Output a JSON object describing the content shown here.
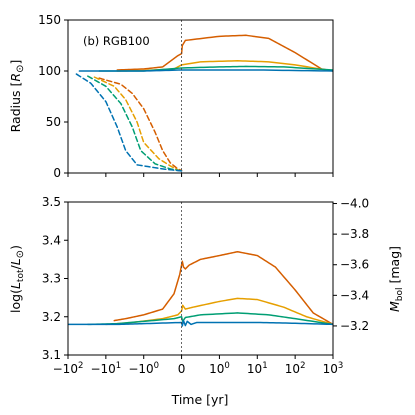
{
  "colors": {
    "orange": "#d55e00",
    "gold": "#e69f00",
    "green": "#009e73",
    "blue": "#0072b2",
    "frame": "#000000",
    "event_line": "#444444"
  },
  "chart_data": [
    {
      "type": "line",
      "panel": "top",
      "annotation": "(b) RGB100",
      "ylabel": "Radius [R⊙]",
      "xlabel": "",
      "x_scale": "symlog",
      "xlim": [
        -100,
        1000
      ],
      "ylim": [
        0,
        150
      ],
      "yticks": [
        0,
        50,
        100,
        150
      ],
      "ytick_labels": [
        "0",
        "50",
        "100",
        "150"
      ],
      "grid": false,
      "event_line_x": 0,
      "series": [
        {
          "color_key": "orange",
          "style": "solid",
          "points": [
            [
              -5,
              101
            ],
            [
              -1,
              102
            ],
            [
              -0.5,
              104
            ],
            [
              -0.1,
              115
            ],
            [
              0,
              117
            ],
            [
              0.02,
              125
            ],
            [
              0.1,
              130
            ],
            [
              1,
              134
            ],
            [
              5,
              135
            ],
            [
              20,
              132
            ],
            [
              100,
              118
            ],
            [
              500,
              102
            ],
            [
              1000,
              100
            ]
          ]
        },
        {
          "color_key": "gold",
          "style": "solid",
          "points": [
            [
              -5,
              100
            ],
            [
              -1,
              100.5
            ],
            [
              -0.2,
              102
            ],
            [
              0,
              106
            ],
            [
              0.5,
              109
            ],
            [
              3,
              110
            ],
            [
              20,
              109
            ],
            [
              100,
              106
            ],
            [
              1000,
              100
            ]
          ]
        },
        {
          "color_key": "green",
          "style": "solid",
          "points": [
            [
              -15,
              100
            ],
            [
              -1,
              100
            ],
            [
              0,
              103
            ],
            [
              1,
              104
            ],
            [
              5,
              104.5
            ],
            [
              50,
              104
            ],
            [
              1000,
              101
            ]
          ]
        },
        {
          "color_key": "blue",
          "style": "solid",
          "points": [
            [
              -50,
              100
            ],
            [
              -1,
              100
            ],
            [
              0,
              101
            ],
            [
              10,
              101
            ],
            [
              1000,
              100
            ]
          ]
        },
        {
          "color_key": "orange",
          "style": "dashed",
          "points": [
            [
              -15,
              93
            ],
            [
              -4,
              87
            ],
            [
              -2,
              78
            ],
            [
              -1,
              63
            ],
            [
              -0.7,
              40
            ],
            [
              -0.5,
              22
            ],
            [
              -0.3,
              10
            ],
            [
              -0.1,
              4
            ],
            [
              0,
              2.5
            ]
          ]
        },
        {
          "color_key": "gold",
          "style": "dashed",
          "points": [
            [
              -20,
              94
            ],
            [
              -6,
              85
            ],
            [
              -3,
              72
            ],
            [
              -1.5,
              50
            ],
            [
              -1,
              30
            ],
            [
              -0.6,
              14
            ],
            [
              -0.3,
              7
            ],
            [
              -0.1,
              3
            ],
            [
              0,
              2
            ]
          ]
        },
        {
          "color_key": "green",
          "style": "dashed",
          "points": [
            [
              -30,
              95
            ],
            [
              -10,
              85
            ],
            [
              -4,
              68
            ],
            [
              -2,
              45
            ],
            [
              -1.2,
              22
            ],
            [
              -0.7,
              9
            ],
            [
              -0.3,
              4
            ],
            [
              0,
              2
            ]
          ]
        },
        {
          "color_key": "blue",
          "style": "dashed",
          "points": [
            [
              -60,
              97
            ],
            [
              -25,
              88
            ],
            [
              -10,
              70
            ],
            [
              -5,
              45
            ],
            [
              -3,
              22
            ],
            [
              -1.5,
              8
            ],
            [
              -0.5,
              4
            ],
            [
              0,
              2
            ]
          ]
        }
      ]
    },
    {
      "type": "line",
      "panel": "bottom",
      "ylabel": "log(Ltot/L⊙)",
      "ylabel_right": "Mbol [mag]",
      "xlabel": "Time [yr]",
      "x_scale": "symlog",
      "xlim": [
        -100,
        1000
      ],
      "ylim": [
        3.1,
        3.5
      ],
      "yticks": [
        3.1,
        3.2,
        3.3,
        3.4,
        3.5
      ],
      "ytick_labels": [
        "3.1",
        "3.2",
        "3.3",
        "3.4",
        "3.5"
      ],
      "right_ticks": [
        -3.2,
        -3.4,
        -3.6,
        -3.8,
        -4.0
      ],
      "right_tick_labels": [
        "−3.2",
        "−3.4",
        "−3.6",
        "−3.8",
        "−4.0"
      ],
      "mbol_ref": 4.74,
      "xticks": [
        -100,
        -10,
        -1,
        0,
        1,
        10,
        100,
        1000
      ],
      "xtick_labels": [
        {
          "base": "−10",
          "exp": "2"
        },
        {
          "base": "−10",
          "exp": "1"
        },
        {
          "base": "−10",
          "exp": "0"
        },
        {
          "base": "0",
          "exp": ""
        },
        {
          "base": "10",
          "exp": "0"
        },
        {
          "base": "10",
          "exp": "1"
        },
        {
          "base": "10",
          "exp": "2"
        },
        {
          "base": "10",
          "exp": "3"
        }
      ],
      "grid": false,
      "event_line_x": 0,
      "series": [
        {
          "color_key": "orange",
          "style": "solid",
          "points": [
            [
              -6,
              3.19
            ],
            [
              -3,
              3.195
            ],
            [
              -1,
              3.205
            ],
            [
              -0.5,
              3.22
            ],
            [
              -0.2,
              3.26
            ],
            [
              -0.05,
              3.31
            ],
            [
              0,
              3.335
            ],
            [
              0.02,
              3.345
            ],
            [
              0.05,
              3.33
            ],
            [
              0.1,
              3.325
            ],
            [
              0.2,
              3.335
            ],
            [
              0.5,
              3.35
            ],
            [
              1,
              3.36
            ],
            [
              3,
              3.37
            ],
            [
              10,
              3.36
            ],
            [
              30,
              3.33
            ],
            [
              100,
              3.27
            ],
            [
              300,
              3.21
            ],
            [
              1000,
              3.18
            ]
          ]
        },
        {
          "color_key": "gold",
          "style": "solid",
          "points": [
            [
              -10,
              3.18
            ],
            [
              -2,
              3.185
            ],
            [
              -0.5,
              3.195
            ],
            [
              -0.1,
              3.205
            ],
            [
              0,
              3.215
            ],
            [
              0.03,
              3.23
            ],
            [
              0.1,
              3.22
            ],
            [
              0.3,
              3.225
            ],
            [
              1,
              3.24
            ],
            [
              3,
              3.248
            ],
            [
              10,
              3.245
            ],
            [
              50,
              3.225
            ],
            [
              200,
              3.2
            ],
            [
              1000,
              3.18
            ]
          ]
        },
        {
          "color_key": "green",
          "style": "solid",
          "points": [
            [
              -30,
              3.18
            ],
            [
              -5,
              3.182
            ],
            [
              -1,
              3.188
            ],
            [
              -0.2,
              3.195
            ],
            [
              0,
              3.2
            ],
            [
              0.03,
              3.188
            ],
            [
              0.1,
              3.198
            ],
            [
              0.5,
              3.205
            ],
            [
              3,
              3.21
            ],
            [
              20,
              3.205
            ],
            [
              100,
              3.195
            ],
            [
              1000,
              3.18
            ]
          ]
        },
        {
          "color_key": "blue",
          "style": "solid",
          "points": [
            [
              -100,
              3.18
            ],
            [
              -5,
              3.18
            ],
            [
              -1,
              3.182
            ],
            [
              0,
              3.185
            ],
            [
              0.02,
              3.176
            ],
            [
              0.05,
              3.19
            ],
            [
              0.1,
              3.177
            ],
            [
              0.15,
              3.188
            ],
            [
              0.25,
              3.18
            ],
            [
              0.4,
              3.185
            ],
            [
              1,
              3.185
            ],
            [
              10,
              3.185
            ],
            [
              100,
              3.183
            ],
            [
              1000,
              3.18
            ]
          ]
        }
      ]
    }
  ]
}
